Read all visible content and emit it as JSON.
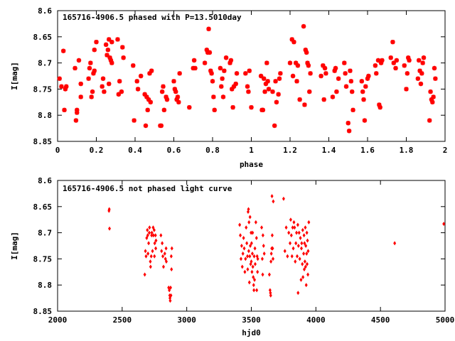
{
  "chart_data": [
    {
      "type": "scatter",
      "title": "165716-4906.5 phased with P=13.5010day",
      "xlabel": "phase",
      "ylabel": "I[mag]",
      "xlim": [
        0,
        2
      ],
      "ylim": [
        8.85,
        8.6
      ],
      "y_inverted": true,
      "grid": false,
      "marker_color": "#ff0000",
      "x_ticks": [
        "0",
        "0.2",
        "0.4",
        "0.6",
        "0.8",
        "1",
        "1.2",
        "1.4",
        "1.6",
        "1.8",
        "2"
      ],
      "y_ticks": [
        "8.6",
        "8.65",
        "8.7",
        "8.75",
        "8.8",
        "8.85"
      ],
      "points": [
        [
          0.01,
          8.73
        ],
        [
          0.02,
          8.745
        ],
        [
          0.03,
          8.677
        ],
        [
          0.035,
          8.79
        ],
        [
          0.04,
          8.75
        ],
        [
          0.045,
          8.745
        ],
        [
          0.09,
          8.71
        ],
        [
          0.095,
          8.81
        ],
        [
          0.1,
          8.79
        ],
        [
          0.1,
          8.795
        ],
        [
          0.11,
          8.695
        ],
        [
          0.12,
          8.74
        ],
        [
          0.12,
          8.765
        ],
        [
          0.16,
          8.73
        ],
        [
          0.165,
          8.71
        ],
        [
          0.17,
          8.7
        ],
        [
          0.175,
          8.765
        ],
        [
          0.18,
          8.755
        ],
        [
          0.185,
          8.72
        ],
        [
          0.19,
          8.715
        ],
        [
          0.19,
          8.675
        ],
        [
          0.2,
          8.66
        ],
        [
          0.23,
          8.745
        ],
        [
          0.235,
          8.73
        ],
        [
          0.24,
          8.755
        ],
        [
          0.25,
          8.665
        ],
        [
          0.255,
          8.685
        ],
        [
          0.26,
          8.675
        ],
        [
          0.265,
          8.655
        ],
        [
          0.265,
          8.74
        ],
        [
          0.27,
          8.69
        ],
        [
          0.275,
          8.695
        ],
        [
          0.28,
          8.66
        ],
        [
          0.28,
          8.7
        ],
        [
          0.31,
          8.655
        ],
        [
          0.315,
          8.76
        ],
        [
          0.32,
          8.735
        ],
        [
          0.33,
          8.755
        ],
        [
          0.335,
          8.67
        ],
        [
          0.34,
          8.69
        ],
        [
          0.39,
          8.705
        ],
        [
          0.395,
          8.81
        ],
        [
          0.41,
          8.735
        ],
        [
          0.415,
          8.75
        ],
        [
          0.43,
          8.725
        ],
        [
          0.45,
          8.76
        ],
        [
          0.455,
          8.82
        ],
        [
          0.46,
          8.765
        ],
        [
          0.465,
          8.79
        ],
        [
          0.47,
          8.77
        ],
        [
          0.475,
          8.72
        ],
        [
          0.48,
          8.775
        ],
        [
          0.485,
          8.715
        ],
        [
          0.53,
          8.82
        ],
        [
          0.535,
          8.82
        ],
        [
          0.54,
          8.755
        ],
        [
          0.545,
          8.745
        ],
        [
          0.55,
          8.79
        ],
        [
          0.56,
          8.765
        ],
        [
          0.565,
          8.77
        ],
        [
          0.6,
          8.735
        ],
        [
          0.605,
          8.75
        ],
        [
          0.61,
          8.755
        ],
        [
          0.615,
          8.77
        ],
        [
          0.62,
          8.765
        ],
        [
          0.625,
          8.775
        ],
        [
          0.63,
          8.72
        ],
        [
          0.68,
          8.785
        ],
        [
          0.7,
          8.71
        ],
        [
          0.705,
          8.695
        ],
        [
          0.71,
          8.71
        ],
        [
          0.76,
          8.7
        ],
        [
          0.77,
          8.675
        ],
        [
          0.775,
          8.68
        ],
        [
          0.78,
          8.635
        ],
        [
          0.785,
          8.68
        ],
        [
          0.79,
          8.715
        ],
        [
          0.795,
          8.72
        ],
        [
          0.8,
          8.735
        ],
        [
          0.805,
          8.765
        ],
        [
          0.81,
          8.79
        ],
        [
          0.84,
          8.71
        ],
        [
          0.845,
          8.745
        ],
        [
          0.85,
          8.73
        ],
        [
          0.855,
          8.765
        ],
        [
          0.86,
          8.715
        ],
        [
          0.87,
          8.69
        ],
        [
          0.89,
          8.7
        ],
        [
          0.895,
          8.695
        ],
        [
          0.9,
          8.75
        ],
        [
          0.905,
          8.785
        ],
        [
          0.91,
          8.745
        ],
        [
          0.92,
          8.74
        ],
        [
          0.925,
          8.72
        ],
        [
          0.97,
          8.72
        ],
        [
          0.98,
          8.745
        ],
        [
          0.985,
          8.755
        ],
        [
          0.99,
          8.715
        ],
        [
          1.0,
          8.785
        ],
        [
          1.05,
          8.725
        ],
        [
          1.055,
          8.79
        ],
        [
          1.06,
          8.79
        ],
        [
          1.065,
          8.73
        ],
        [
          1.07,
          8.755
        ],
        [
          1.075,
          8.74
        ],
        [
          1.08,
          8.7
        ],
        [
          1.085,
          8.735
        ],
        [
          1.09,
          8.75
        ],
        [
          1.11,
          8.755
        ],
        [
          1.12,
          8.82
        ],
        [
          1.125,
          8.735
        ],
        [
          1.13,
          8.775
        ],
        [
          1.14,
          8.76
        ],
        [
          1.145,
          8.73
        ],
        [
          1.15,
          8.72
        ],
        [
          1.2,
          8.7
        ],
        [
          1.21,
          8.655
        ],
        [
          1.215,
          8.725
        ],
        [
          1.22,
          8.66
        ],
        [
          1.23,
          8.7
        ],
        [
          1.235,
          8.735
        ],
        [
          1.24,
          8.705
        ],
        [
          1.25,
          8.77
        ],
        [
          1.27,
          8.63
        ],
        [
          1.275,
          8.78
        ],
        [
          1.28,
          8.675
        ],
        [
          1.285,
          8.68
        ],
        [
          1.29,
          8.7
        ],
        [
          1.295,
          8.705
        ],
        [
          1.3,
          8.755
        ],
        [
          1.305,
          8.72
        ],
        [
          1.36,
          8.725
        ],
        [
          1.37,
          8.705
        ],
        [
          1.375,
          8.77
        ],
        [
          1.38,
          8.71
        ],
        [
          1.385,
          8.72
        ],
        [
          1.42,
          8.765
        ],
        [
          1.43,
          8.715
        ],
        [
          1.435,
          8.71
        ],
        [
          1.44,
          8.755
        ],
        [
          1.45,
          8.73
        ],
        [
          1.48,
          8.7
        ],
        [
          1.485,
          8.72
        ],
        [
          1.49,
          8.745
        ],
        [
          1.5,
          8.815
        ],
        [
          1.505,
          8.83
        ],
        [
          1.51,
          8.715
        ],
        [
          1.515,
          8.735
        ],
        [
          1.52,
          8.755
        ],
        [
          1.525,
          8.79
        ],
        [
          1.57,
          8.735
        ],
        [
          1.575,
          8.755
        ],
        [
          1.58,
          8.77
        ],
        [
          1.585,
          8.81
        ],
        [
          1.59,
          8.745
        ],
        [
          1.6,
          8.73
        ],
        [
          1.605,
          8.725
        ],
        [
          1.64,
          8.705
        ],
        [
          1.645,
          8.72
        ],
        [
          1.655,
          8.695
        ],
        [
          1.66,
          8.78
        ],
        [
          1.665,
          8.785
        ],
        [
          1.67,
          8.7
        ],
        [
          1.675,
          8.695
        ],
        [
          1.72,
          8.69
        ],
        [
          1.73,
          8.66
        ],
        [
          1.735,
          8.7
        ],
        [
          1.745,
          8.71
        ],
        [
          1.75,
          8.695
        ],
        [
          1.79,
          8.705
        ],
        [
          1.8,
          8.75
        ],
        [
          1.805,
          8.72
        ],
        [
          1.81,
          8.69
        ],
        [
          1.815,
          8.695
        ],
        [
          1.86,
          8.73
        ],
        [
          1.865,
          8.695
        ],
        [
          1.87,
          8.715
        ],
        [
          1.875,
          8.74
        ],
        [
          1.88,
          8.72
        ],
        [
          1.885,
          8.7
        ],
        [
          1.89,
          8.69
        ],
        [
          1.92,
          8.81
        ],
        [
          1.925,
          8.755
        ],
        [
          1.93,
          8.77
        ],
        [
          1.935,
          8.775
        ],
        [
          1.94,
          8.765
        ],
        [
          1.945,
          8.71
        ],
        [
          1.95,
          8.73
        ]
      ]
    },
    {
      "type": "scatter",
      "title": "165716-4906.5 not phased light curve",
      "xlabel": "hjd0",
      "ylabel": "I[mag]",
      "xlim": [
        2000,
        5000
      ],
      "ylim": [
        8.85,
        8.6
      ],
      "y_inverted": true,
      "grid": false,
      "marker_color": "#ff0000",
      "x_ticks": [
        "2000",
        "2500",
        "3000",
        "3500",
        "4000",
        "4500",
        "5000"
      ],
      "y_ticks": [
        "8.6",
        "8.65",
        "8.7",
        "8.75",
        "8.8",
        "8.85"
      ],
      "points": [
        [
          2398,
          8.658
        ],
        [
          2400,
          8.655
        ],
        [
          2402,
          8.692
        ],
        [
          2675,
          8.78
        ],
        [
          2680,
          8.735
        ],
        [
          2685,
          8.745
        ],
        [
          2690,
          8.71
        ],
        [
          2695,
          8.695
        ],
        [
          2698,
          8.705
        ],
        [
          2700,
          8.74
        ],
        [
          2705,
          8.72
        ],
        [
          2710,
          8.7
        ],
        [
          2712,
          8.69
        ],
        [
          2718,
          8.755
        ],
        [
          2720,
          8.765
        ],
        [
          2725,
          8.745
        ],
        [
          2728,
          8.705
        ],
        [
          2730,
          8.7
        ],
        [
          2735,
          8.735
        ],
        [
          2740,
          8.69
        ],
        [
          2742,
          8.705
        ],
        [
          2748,
          8.695
        ],
        [
          2750,
          8.745
        ],
        [
          2752,
          8.72
        ],
        [
          2758,
          8.705
        ],
        [
          2760,
          8.73
        ],
        [
          2762,
          8.715
        ],
        [
          2800,
          8.705
        ],
        [
          2805,
          8.735
        ],
        [
          2810,
          8.72
        ],
        [
          2815,
          8.745
        ],
        [
          2820,
          8.765
        ],
        [
          2830,
          8.74
        ],
        [
          2835,
          8.75
        ],
        [
          2840,
          8.73
        ],
        [
          2842,
          8.755
        ],
        [
          2860,
          8.805
        ],
        [
          2865,
          8.81
        ],
        [
          2868,
          8.82
        ],
        [
          2870,
          8.825
        ],
        [
          2872,
          8.83
        ],
        [
          2875,
          8.805
        ],
        [
          2878,
          8.82
        ],
        [
          2880,
          8.745
        ],
        [
          2882,
          8.77
        ],
        [
          2885,
          8.73
        ],
        [
          3410,
          8.685
        ],
        [
          3415,
          8.705
        ],
        [
          3420,
          8.75
        ],
        [
          3425,
          8.725
        ],
        [
          3430,
          8.765
        ],
        [
          3435,
          8.74
        ],
        [
          3440,
          8.71
        ],
        [
          3445,
          8.73
        ],
        [
          3450,
          8.775
        ],
        [
          3455,
          8.75
        ],
        [
          3460,
          8.69
        ],
        [
          3465,
          8.72
        ],
        [
          3470,
          8.745
        ],
        [
          3472,
          8.77
        ],
        [
          3475,
          8.66
        ],
        [
          3478,
          8.655
        ],
        [
          3480,
          8.735
        ],
        [
          3482,
          8.68
        ],
        [
          3485,
          8.795
        ],
        [
          3488,
          8.745
        ],
        [
          3490,
          8.67
        ],
        [
          3492,
          8.725
        ],
        [
          3495,
          8.76
        ],
        [
          3498,
          8.7
        ],
        [
          3500,
          8.755
        ],
        [
          3502,
          8.72
        ],
        [
          3505,
          8.775
        ],
        [
          3508,
          8.74
        ],
        [
          3510,
          8.7
        ],
        [
          3512,
          8.765
        ],
        [
          3515,
          8.785
        ],
        [
          3518,
          8.8
        ],
        [
          3520,
          8.81
        ],
        [
          3522,
          8.745
        ],
        [
          3525,
          8.79
        ],
        [
          3528,
          8.73
        ],
        [
          3530,
          8.76
        ],
        [
          3535,
          8.68
        ],
        [
          3540,
          8.71
        ],
        [
          3542,
          8.81
        ],
        [
          3545,
          8.745
        ],
        [
          3548,
          8.775
        ],
        [
          3550,
          8.75
        ],
        [
          3580,
          8.69
        ],
        [
          3585,
          8.75
        ],
        [
          3588,
          8.78
        ],
        [
          3590,
          8.705
        ],
        [
          3595,
          8.725
        ],
        [
          3600,
          8.74
        ],
        [
          3640,
          8.78
        ],
        [
          3645,
          8.81
        ],
        [
          3648,
          8.815
        ],
        [
          3650,
          8.82
        ],
        [
          3652,
          8.755
        ],
        [
          3655,
          8.74
        ],
        [
          3658,
          8.73
        ],
        [
          3660,
          8.63
        ],
        [
          3662,
          8.705
        ],
        [
          3665,
          8.73
        ],
        [
          3668,
          8.75
        ],
        [
          3670,
          8.64
        ],
        [
          3750,
          8.635
        ],
        [
          3760,
          8.735
        ],
        [
          3770,
          8.69
        ],
        [
          3780,
          8.745
        ],
        [
          3790,
          8.7
        ],
        [
          3800,
          8.72
        ],
        [
          3805,
          8.675
        ],
        [
          3810,
          8.705
        ],
        [
          3815,
          8.745
        ],
        [
          3820,
          8.69
        ],
        [
          3825,
          8.73
        ],
        [
          3830,
          8.68
        ],
        [
          3835,
          8.69
        ],
        [
          3840,
          8.755
        ],
        [
          3845,
          8.72
        ],
        [
          3850,
          8.7
        ],
        [
          3855,
          8.745
        ],
        [
          3860,
          8.685
        ],
        [
          3862,
          8.815
        ],
        [
          3865,
          8.725
        ],
        [
          3870,
          8.7
        ],
        [
          3875,
          8.75
        ],
        [
          3880,
          8.71
        ],
        [
          3885,
          8.79
        ],
        [
          3888,
          8.73
        ],
        [
          3890,
          8.72
        ],
        [
          3895,
          8.76
        ],
        [
          3898,
          8.695
        ],
        [
          3900,
          8.785
        ],
        [
          3905,
          8.74
        ],
        [
          3908,
          8.705
        ],
        [
          3910,
          8.77
        ],
        [
          3912,
          8.72
        ],
        [
          3915,
          8.755
        ],
        [
          3918,
          8.69
        ],
        [
          3920,
          8.765
        ],
        [
          3922,
          8.725
        ],
        [
          3925,
          8.8
        ],
        [
          3928,
          8.74
        ],
        [
          3930,
          8.7
        ],
        [
          3932,
          8.76
        ],
        [
          3935,
          8.715
        ],
        [
          3938,
          8.78
        ],
        [
          3940,
          8.735
        ],
        [
          3945,
          8.68
        ],
        [
          4610,
          8.72
        ],
        [
          4990,
          8.683
        ]
      ]
    }
  ]
}
